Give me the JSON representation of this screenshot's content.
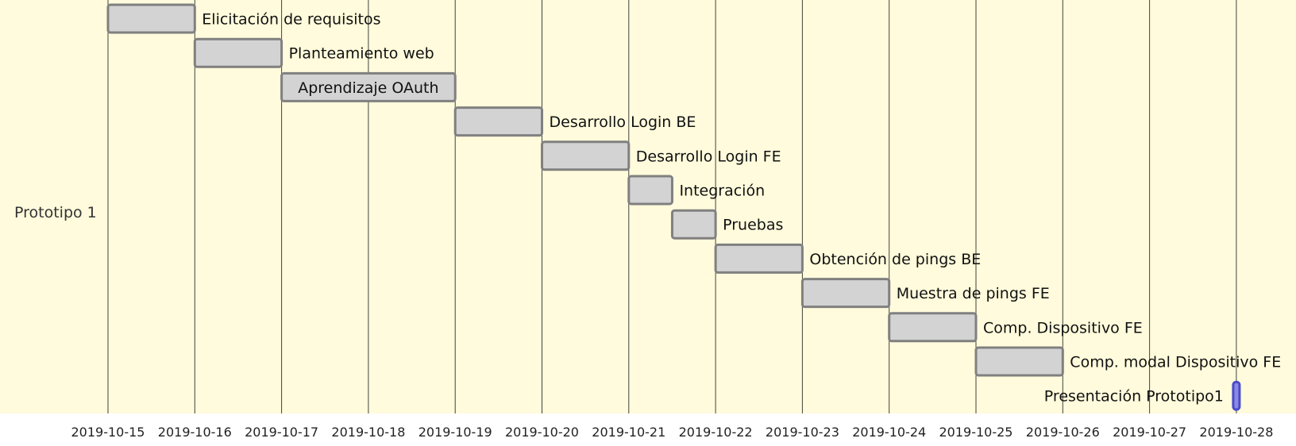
{
  "section": {
    "label": "Prototipo 1"
  },
  "chart_data": {
    "type": "gantt",
    "x_axis": {
      "type": "date",
      "range": [
        "2019-10-15",
        "2019-10-28"
      ],
      "ticks": [
        "2019-10-15",
        "2019-10-16",
        "2019-10-17",
        "2019-10-18",
        "2019-10-19",
        "2019-10-20",
        "2019-10-21",
        "2019-10-22",
        "2019-10-23",
        "2019-10-24",
        "2019-10-25",
        "2019-10-26",
        "2019-10-27",
        "2019-10-28"
      ],
      "grid": true
    },
    "tasks": [
      {
        "name": "Elicitación de requisitos",
        "start": "2019-10-15",
        "end": "2019-10-16"
      },
      {
        "name": "Planteamiento web",
        "start": "2019-10-16",
        "end": "2019-10-17"
      },
      {
        "name": "Aprendizaje OAuth",
        "start": "2019-10-17",
        "end": "2019-10-19",
        "label_inside": true
      },
      {
        "name": "Desarrollo Login BE",
        "start": "2019-10-19",
        "end": "2019-10-20"
      },
      {
        "name": "Desarrollo Login FE",
        "start": "2019-10-20",
        "end": "2019-10-21"
      },
      {
        "name": "Integración",
        "start": "2019-10-21",
        "end": "2019-10-21 12:00"
      },
      {
        "name": "Pruebas",
        "start": "2019-10-21 12:00",
        "end": "2019-10-22"
      },
      {
        "name": "Obtención de pings BE",
        "start": "2019-10-22",
        "end": "2019-10-23"
      },
      {
        "name": "Muestra de pings FE",
        "start": "2019-10-23",
        "end": "2019-10-24"
      },
      {
        "name": "Comp. Dispositivo FE",
        "start": "2019-10-24",
        "end": "2019-10-25"
      },
      {
        "name": "Comp. modal Dispositivo FE",
        "start": "2019-10-25",
        "end": "2019-10-26"
      },
      {
        "name": "Presentación Prototipo1",
        "start": "2019-10-28",
        "end": "2019-10-28",
        "milestone": true,
        "label_left": true
      }
    ]
  }
}
